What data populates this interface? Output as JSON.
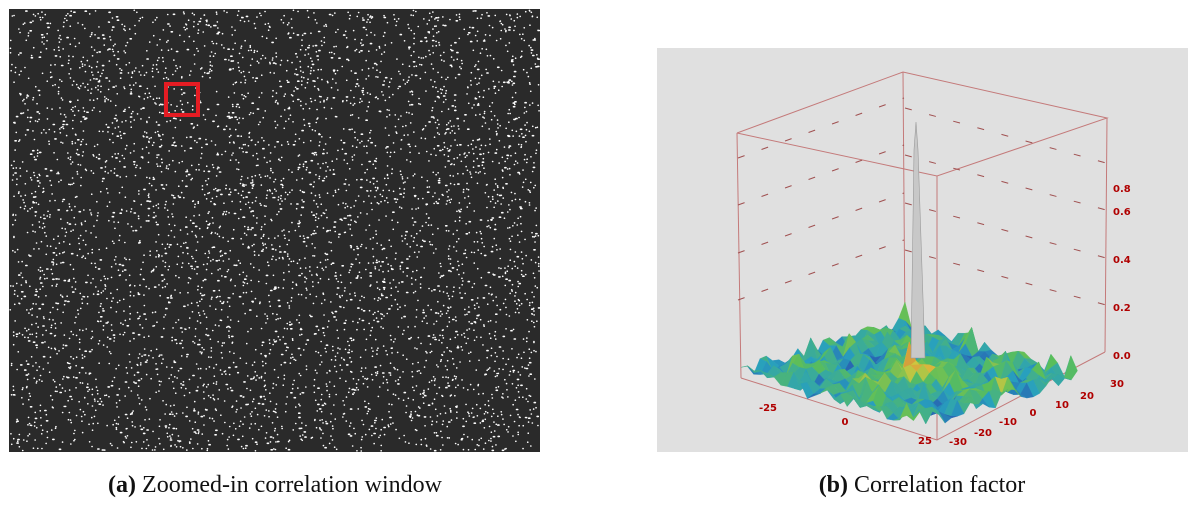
{
  "panels": [
    {
      "label": "(a)",
      "caption": "Zoomed-in correlation window"
    },
    {
      "label": "(b)",
      "caption": "Correlation factor",
      "z_ticks": [
        "0.8",
        "0.6",
        "0.4",
        "0.2",
        "0.0"
      ],
      "x_ticks": [
        "-25",
        "0",
        "25"
      ],
      "y_ticks": [
        "30",
        "20",
        "10",
        "0",
        "-10",
        "-20",
        "-30"
      ]
    }
  ]
}
